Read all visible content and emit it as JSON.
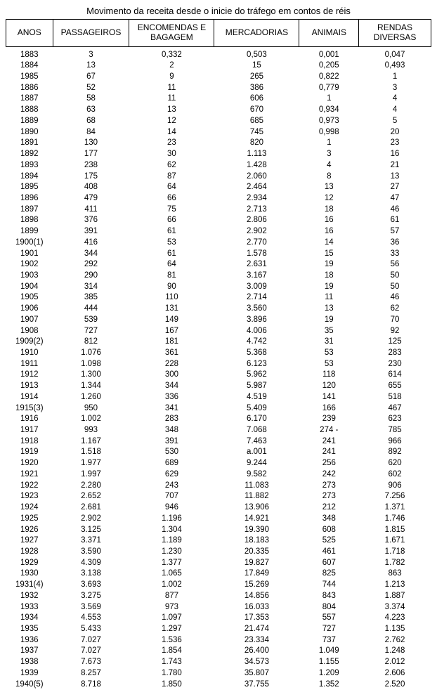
{
  "title": "Movimento da receita desde o inicie do tráfego em contos de réis",
  "table": {
    "columns": [
      "ANOS",
      "PASSAGEIROS",
      "ENCOMENDAS E BAGAGEM",
      "MERCADORIAS",
      "ANIMAIS",
      "RENDAS DIVERSAS"
    ],
    "col_widths_pct": [
      11,
      18,
      20,
      20,
      14,
      17
    ],
    "header_font_size_pt": 12,
    "cell_font_size_pt": 11.5,
    "border_color": "#000000",
    "background_color": "#ffffff",
    "text_color": "#000000",
    "rows": [
      [
        "1883",
        "3",
        "0,332",
        "0,503",
        "0,001",
        "0,047"
      ],
      [
        "1884",
        "13",
        "2",
        "15",
        "0,205",
        "0,493"
      ],
      [
        "1985",
        "67",
        "9",
        "265",
        "0,822",
        "1"
      ],
      [
        "1886",
        "52",
        "11",
        "386",
        "0,779",
        "3"
      ],
      [
        "1887",
        "58",
        "11",
        "606",
        "1",
        "4"
      ],
      [
        "1888",
        "63",
        "13",
        "670",
        "0,934",
        "4"
      ],
      [
        "1889",
        "68",
        "12",
        "685",
        "0,973",
        "5"
      ],
      [
        "1890",
        "84",
        "14",
        "745",
        "0,998",
        "20"
      ],
      [
        "1891",
        "130",
        "23",
        "820",
        "1",
        "23"
      ],
      [
        "1892",
        "177",
        "30",
        "1.113",
        "3",
        "16"
      ],
      [
        "1893",
        "238",
        "62",
        "1.428",
        "4",
        "21"
      ],
      [
        "1894",
        "175",
        "87",
        "2.060",
        "8",
        "13"
      ],
      [
        "1895",
        "408",
        "64",
        "2.464",
        "13",
        "27"
      ],
      [
        "1896",
        "479",
        "66",
        "2.934",
        "12",
        "47"
      ],
      [
        "1897",
        "411",
        "75",
        "2.713",
        "18",
        "46"
      ],
      [
        "1898",
        "376",
        "66",
        "2.806",
        "16",
        "61"
      ],
      [
        "1899",
        "391",
        "61",
        "2.902",
        "16",
        "57"
      ],
      [
        "1900(1)",
        "416",
        "53",
        "2.770",
        "14",
        "36"
      ],
      [
        "1901",
        "344",
        "61",
        "1.578",
        "15",
        "33"
      ],
      [
        "1902",
        "292",
        "64",
        "2.631",
        "19",
        "56"
      ],
      [
        "1903",
        "290",
        "81",
        "3.167",
        "18",
        "50"
      ],
      [
        "1904",
        "314",
        "90",
        "3.009",
        "19",
        "50"
      ],
      [
        "1905",
        "385",
        "110",
        "2.714",
        "11",
        "46"
      ],
      [
        "1906",
        "444",
        "131",
        "3.560",
        "13",
        "62"
      ],
      [
        "1907",
        "539",
        "149",
        "3.896",
        "19",
        "70"
      ],
      [
        "1908",
        "727",
        "167",
        "4.006",
        "35",
        "92"
      ],
      [
        "1909(2)",
        "812",
        "181",
        "4.742",
        "31",
        "125"
      ],
      [
        "1910",
        "1.076",
        "361",
        "5.368",
        "53",
        "283"
      ],
      [
        "1911",
        "1.098",
        "228",
        "6.123",
        "53",
        "230"
      ],
      [
        "1912",
        "1.300",
        "300",
        "5.962",
        "118",
        "614"
      ],
      [
        "1913",
        "1.344",
        "344",
        "5.987",
        "120",
        "655"
      ],
      [
        "1914",
        "1.260",
        "336",
        "4.519",
        "141",
        "518"
      ],
      [
        "1915(3)",
        "950",
        "341",
        "5.409",
        "166",
        "467"
      ],
      [
        "1916",
        "1.002",
        "283",
        "6.170",
        "239",
        "623"
      ],
      [
        "1917",
        "993",
        "348",
        "7.068",
        "274 -",
        "785"
      ],
      [
        "1918",
        "1.167",
        "391",
        "7.463",
        "241",
        "966"
      ],
      [
        "1919",
        "1.518",
        "530",
        "a.001",
        "241",
        "892"
      ],
      [
        "1920",
        "1.977",
        "689",
        "9.244",
        "256",
        "620"
      ],
      [
        "1921",
        "1.997",
        "629",
        "9.582",
        "242",
        "602"
      ],
      [
        "1922",
        "2.280",
        "243",
        "11.083",
        "273",
        "906"
      ],
      [
        "1923",
        "2.652",
        "707",
        "11.882",
        "273",
        "7.256"
      ],
      [
        "1924",
        "2.681",
        "946",
        "13.906",
        "212",
        "1.371"
      ],
      [
        "1925",
        "2.902",
        "1.196",
        "14.921",
        "348",
        "1.746"
      ],
      [
        "1926",
        "3.125",
        "1.304",
        "19.390",
        "608",
        "1.815"
      ],
      [
        "1927",
        "3.371",
        "1.189",
        "18.183",
        "525",
        "1.671"
      ],
      [
        "1928",
        "3.590",
        "1.230",
        "20.335",
        "461",
        "1.718"
      ],
      [
        "1929",
        "4.309",
        "1.377",
        "19.827",
        "607",
        "1.782"
      ],
      [
        "1930",
        "3.138",
        "1.065",
        "17.849",
        "825",
        "863"
      ],
      [
        "1931(4)",
        "3.693",
        "1.002",
        "15.269",
        "744",
        "1.213"
      ],
      [
        "1932",
        "3.275",
        "877",
        "14.856",
        "843",
        "1.887"
      ],
      [
        "1933",
        "3.569",
        "973",
        "16.033",
        "804",
        "3.374"
      ],
      [
        "1934",
        "4.553",
        "1.097",
        "17.353",
        "557",
        "4.223"
      ],
      [
        "1935",
        "5.433",
        "1.297",
        "21.474",
        "727",
        "1.135"
      ],
      [
        "1936",
        "7.027",
        "1.536",
        "23.334",
        "737",
        "2.762"
      ],
      [
        "1937",
        "7.027",
        "1.854",
        "26.400",
        "1.049",
        "1.248"
      ],
      [
        "1938",
        "7.673",
        "1.743",
        "34.573",
        "1.155",
        "2.012"
      ],
      [
        "1939",
        "8.257",
        "1.780",
        "35.807",
        "1.209",
        "2.606"
      ],
      [
        "1940(5)",
        "8.718",
        "1.850",
        "37.755",
        "1.352",
        "2.520"
      ]
    ]
  }
}
